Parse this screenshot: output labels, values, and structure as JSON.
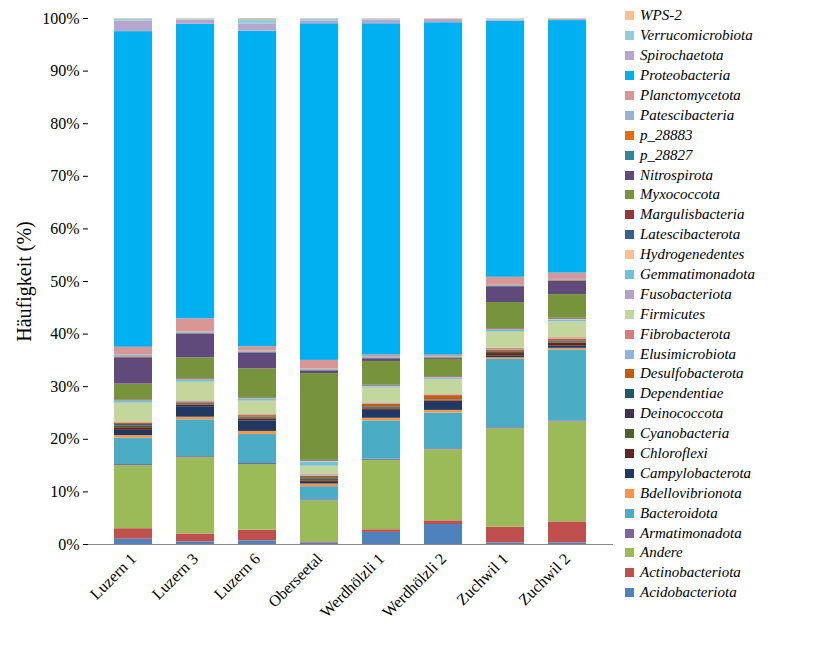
{
  "chart_data": {
    "type": "bar",
    "stacked": true,
    "grid": false,
    "legend": "right",
    "y_label": "Häufigkeit (%)",
    "categories": [
      "Luzern 1",
      "Luzern 3",
      "Luzern 6",
      "Oberseetal",
      "Werdhölzli 1",
      "Werdhölzli 2",
      "Zuchwil 1",
      "Zuchwil 2"
    ],
    "ylim": [
      0,
      100
    ],
    "yticks": [
      {
        "value": 0,
        "label": "0%"
      },
      {
        "value": 10,
        "label": "10%"
      },
      {
        "value": 20,
        "label": "20%"
      },
      {
        "value": 30,
        "label": "30%"
      },
      {
        "value": 40,
        "label": "40%"
      },
      {
        "value": 50,
        "label": "50%"
      },
      {
        "value": 60,
        "label": "60%"
      },
      {
        "value": 70,
        "label": "70%"
      },
      {
        "value": 80,
        "label": "80%"
      },
      {
        "value": 90,
        "label": "90%"
      },
      {
        "value": 100,
        "label": "100%"
      }
    ],
    "series": [
      {
        "name": "Acidobacteriota",
        "color": "#4f81bd",
        "values": [
          1,
          0.5,
          0.7,
          0.3,
          2.3,
          3.8,
          0.3,
          0.3
        ]
      },
      {
        "name": "Actinobacteriota",
        "color": "#c0504d",
        "values": [
          2,
          1.5,
          2,
          0.2,
          0.5,
          0.7,
          3,
          4
        ]
      },
      {
        "name": "Andere",
        "color": "#9bbb59",
        "values": [
          12,
          14.5,
          12.5,
          7.8,
          13.2,
          13.5,
          18.7,
          19
        ]
      },
      {
        "name": "Armatimonadota",
        "color": "#8064a2",
        "values": [
          0.2,
          0.2,
          0.2,
          0.2,
          0.2,
          0.2,
          0.2,
          0.2
        ]
      },
      {
        "name": "Bacteroidota",
        "color": "#4bacc6",
        "values": [
          5,
          7,
          5.5,
          2.5,
          7.3,
          6.8,
          13,
          13.5
        ]
      },
      {
        "name": "Bdellovibrionota",
        "color": "#f79646",
        "values": [
          0.5,
          0.5,
          0.6,
          0.5,
          0.5,
          0.5,
          0.3,
          0.3
        ]
      },
      {
        "name": "Campylobacterota",
        "color": "#1f3864",
        "values": [
          1,
          2,
          2,
          0.3,
          1.5,
          1.5,
          0.3,
          0.4
        ]
      },
      {
        "name": "Chloroflexi",
        "color": "#632523",
        "values": [
          0.5,
          0.3,
          0.3,
          0.3,
          0.3,
          0.2,
          0.5,
          0.6
        ]
      },
      {
        "name": "Cyanobacteria",
        "color": "#4f6228",
        "values": [
          0.3,
          0.2,
          0.2,
          0.3,
          0.2,
          0.1,
          0.2,
          0.2
        ]
      },
      {
        "name": "Deinococcota",
        "color": "#403152",
        "values": [
          0.1,
          0.1,
          0.1,
          0.1,
          0.1,
          0.1,
          0.1,
          0.1
        ]
      },
      {
        "name": "Dependentiae",
        "color": "#215968",
        "values": [
          0.2,
          0.1,
          0.1,
          0.2,
          0.1,
          0.1,
          0.1,
          0.1
        ]
      },
      {
        "name": "Desulfobacterota",
        "color": "#c55a11",
        "values": [
          0.3,
          0.2,
          0.3,
          0.3,
          0.5,
          0.8,
          0.3,
          0.3
        ]
      },
      {
        "name": "Elusimicrobiota",
        "color": "#8eb4e3",
        "values": [
          0.1,
          0.1,
          0.1,
          0.2,
          0.1,
          0.1,
          0.1,
          0.1
        ]
      },
      {
        "name": "Fibrobacterota",
        "color": "#da7b7b",
        "values": [
          0.1,
          0.1,
          0.1,
          0.1,
          0.1,
          0.1,
          0.2,
          0.2
        ]
      },
      {
        "name": "Firmicutes",
        "color": "#c3d69b",
        "values": [
          3.5,
          3.5,
          2.5,
          1.5,
          2.8,
          2.8,
          3,
          3
        ]
      },
      {
        "name": "Fusobacteriota",
        "color": "#b3a2c7",
        "values": [
          0.1,
          0.1,
          0.1,
          0.1,
          0.1,
          0.1,
          0.1,
          0.1
        ]
      },
      {
        "name": "Gemmatimonadota",
        "color": "#6fc3d6",
        "values": [
          0.3,
          0.3,
          0.3,
          0.8,
          0.2,
          0.2,
          0.3,
          0.3
        ]
      },
      {
        "name": "Hydrogenedentes",
        "color": "#fabf8f",
        "values": [
          0.1,
          0.1,
          0.1,
          0.1,
          0.1,
          0.1,
          0.1,
          0.1
        ]
      },
      {
        "name": "Latescibacterota",
        "color": "#366092",
        "values": [
          0.1,
          0.1,
          0.1,
          0.1,
          0.1,
          0.1,
          0.1,
          0.1
        ]
      },
      {
        "name": "Margulisbacteria",
        "color": "#953735",
        "values": [
          0.1,
          0.1,
          0.1,
          0.1,
          0.1,
          0.1,
          0.1,
          0.1
        ]
      },
      {
        "name": "Myxococcota",
        "color": "#77933c",
        "values": [
          3,
          4,
          5.5,
          16.5,
          4.5,
          3.3,
          5,
          4.5
        ]
      },
      {
        "name": "Nitrospirota",
        "color": "#604a7b",
        "values": [
          5,
          4.5,
          3,
          0.5,
          0.5,
          0.2,
          3,
          2.5
        ]
      },
      {
        "name": "p_28827",
        "color": "#31859c",
        "values": [
          0.1,
          0.1,
          0.1,
          0.1,
          0.1,
          0.1,
          0.1,
          0.1
        ]
      },
      {
        "name": "p_28883",
        "color": "#e46c0a",
        "values": [
          0.1,
          0.1,
          0.1,
          0.1,
          0.1,
          0.1,
          0.1,
          0.1
        ]
      },
      {
        "name": "Patescibacteria",
        "color": "#95b3d7",
        "values": [
          0.3,
          0.2,
          0.2,
          0.2,
          0.2,
          0.1,
          0.2,
          0.2
        ]
      },
      {
        "name": "Planctomycetota",
        "color": "#d99694",
        "values": [
          1.5,
          2.5,
          0.8,
          1.6,
          0.3,
          0.3,
          1.4,
          1.2
        ]
      },
      {
        "name": "Proteobacteria",
        "color": "#00b0f0",
        "values": [
          60,
          56,
          60,
          64,
          63,
          63.2,
          48.7,
          48
        ]
      },
      {
        "name": "Spirochaetota",
        "color": "#b7a6cc",
        "values": [
          2,
          0.8,
          1.3,
          0.5,
          0.7,
          0.6,
          0.2,
          0.2
        ]
      },
      {
        "name": "Verrucomicrobiota",
        "color": "#93cddd",
        "values": [
          0.4,
          0.2,
          0.9,
          0.4,
          0.2,
          0.1,
          0.2,
          0.1
        ]
      },
      {
        "name": "WPS-2",
        "color": "#fac090",
        "values": [
          0.1,
          0.1,
          0.2,
          0.1,
          0.1,
          0.1,
          0.1,
          0.1
        ]
      }
    ]
  }
}
